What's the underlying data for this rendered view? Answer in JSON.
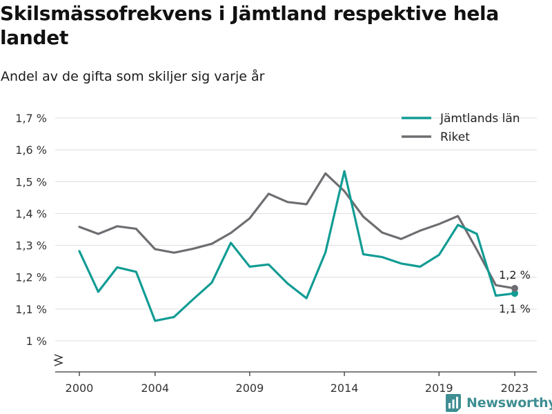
{
  "title": "Skilsmässofrekvens i Jämtland respektive hela landet",
  "subtitle": "Andel av de gifta som skiljer sig varje år",
  "brand": "Newsworthy",
  "chart_data": {
    "type": "line",
    "x": [
      2000,
      2001,
      2002,
      2003,
      2004,
      2005,
      2006,
      2007,
      2008,
      2009,
      2010,
      2011,
      2012,
      2013,
      2014,
      2015,
      2016,
      2017,
      2018,
      2019,
      2020,
      2021,
      2022,
      2023
    ],
    "series": [
      {
        "name": "Jämtlands län",
        "color": "#119c94",
        "values": [
          1.282,
          1.154,
          1.231,
          1.217,
          1.063,
          1.075,
          1.13,
          1.183,
          1.308,
          1.233,
          1.24,
          1.18,
          1.134,
          1.278,
          1.533,
          1.272,
          1.263,
          1.243,
          1.233,
          1.27,
          1.364,
          1.336,
          1.142,
          1.149
        ],
        "end_label": "1,1 %"
      },
      {
        "name": "Riket",
        "color": "#6f6d71",
        "values": [
          1.358,
          1.336,
          1.36,
          1.352,
          1.288,
          1.277,
          1.289,
          1.305,
          1.339,
          1.385,
          1.462,
          1.436,
          1.429,
          1.526,
          1.47,
          1.39,
          1.34,
          1.32,
          1.346,
          1.367,
          1.392,
          1.286,
          1.175,
          1.165
        ],
        "end_label": "1,2 %"
      }
    ],
    "y_ticks": [
      1.0,
      1.1,
      1.2,
      1.3,
      1.4,
      1.5,
      1.6,
      1.7
    ],
    "y_tick_labels": [
      "1 %",
      "1,1 %",
      "1,2 %",
      "1,3 %",
      "1,4 %",
      "1,5 %",
      "1,6 %",
      "1,7 %"
    ],
    "x_ticks": [
      2000,
      2004,
      2009,
      2014,
      2019,
      2023
    ],
    "x_tick_labels": [
      "2000",
      "2004",
      "2009",
      "2014",
      "2019",
      "2023"
    ],
    "ylim": [
      0.9,
      1.7
    ],
    "y_axis_break": true,
    "grid": true,
    "legend_position": "top-right",
    "colors": {
      "grid": "#dcdcdc",
      "axis": "#333333",
      "text": "#333333",
      "brand": "#3e8e93"
    }
  }
}
